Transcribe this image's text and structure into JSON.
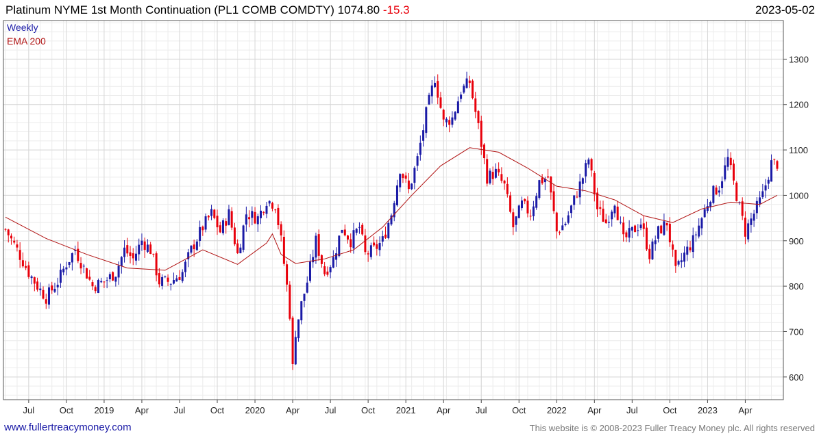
{
  "header": {
    "title": "Platinum NYME 1st Month Continuation (PL1 COMB COMDTY) 1074.80",
    "change": "-15.3",
    "date": "2023-05-02"
  },
  "legend": {
    "series1": "Weekly",
    "series2": "EMA 200"
  },
  "footer": {
    "website": "www.fullertreacymoney.com",
    "copyright": "This website is © 2008-2023 Fuller Treacy Money plc. All rights reserved"
  },
  "colors": {
    "up": "#1a1aa6",
    "down": "#e8000b",
    "ema": "#b01010",
    "grid": "#d6d6d6"
  },
  "chart_data": {
    "type": "candlestick",
    "x_ticks": [
      "Jul",
      "Oct",
      "2019",
      "Apr",
      "Jul",
      "Oct",
      "2020",
      "Apr",
      "Jul",
      "Oct",
      "2021",
      "Apr",
      "Jul",
      "Oct",
      "2022",
      "Apr",
      "Jul",
      "Oct",
      "2023",
      "Apr"
    ],
    "y_ticks": [
      600,
      700,
      800,
      900,
      1000,
      1100,
      1200,
      1300
    ],
    "ylim": [
      550,
      1385
    ],
    "weekly_close_points": [
      [
        0,
        925
      ],
      [
        4,
        880
      ],
      [
        8,
        830
      ],
      [
        11,
        800
      ],
      [
        14,
        775
      ],
      [
        18,
        810
      ],
      [
        21,
        850
      ],
      [
        24,
        880
      ],
      [
        27,
        840
      ],
      [
        30,
        800
      ],
      [
        34,
        810
      ],
      [
        38,
        830
      ],
      [
        41,
        880
      ],
      [
        44,
        860
      ],
      [
        47,
        900
      ],
      [
        50,
        880
      ],
      [
        53,
        810
      ],
      [
        57,
        810
      ],
      [
        61,
        830
      ],
      [
        64,
        880
      ],
      [
        68,
        930
      ],
      [
        71,
        960
      ],
      [
        74,
        920
      ],
      [
        77,
        960
      ],
      [
        80,
        870
      ],
      [
        83,
        960
      ],
      [
        87,
        950
      ],
      [
        90,
        990
      ],
      [
        93,
        980
      ],
      [
        95,
        900
      ],
      [
        97,
        800
      ],
      [
        98,
        740
      ],
      [
        99,
        620
      ],
      [
        100,
        700
      ],
      [
        102,
        760
      ],
      [
        104,
        810
      ],
      [
        107,
        900
      ],
      [
        110,
        830
      ],
      [
        113,
        860
      ],
      [
        116,
        930
      ],
      [
        119,
        900
      ],
      [
        122,
        930
      ],
      [
        124,
        870
      ],
      [
        127,
        880
      ],
      [
        130,
        900
      ],
      [
        133,
        960
      ],
      [
        136,
        1060
      ],
      [
        139,
        1010
      ],
      [
        142,
        1080
      ],
      [
        145,
        1180
      ],
      [
        148,
        1260
      ],
      [
        151,
        1160
      ],
      [
        154,
        1170
      ],
      [
        157,
        1230
      ],
      [
        160,
        1250
      ],
      [
        163,
        1150
      ],
      [
        166,
        1040
      ],
      [
        169,
        1050
      ],
      [
        172,
        1020
      ],
      [
        175,
        930
      ],
      [
        178,
        980
      ],
      [
        181,
        960
      ],
      [
        184,
        1030
      ],
      [
        187,
        1040
      ],
      [
        190,
        920
      ],
      [
        193,
        940
      ],
      [
        196,
        990
      ],
      [
        199,
        1040
      ],
      [
        201,
        1080
      ],
      [
        204,
        970
      ],
      [
        207,
        940
      ],
      [
        210,
        990
      ],
      [
        213,
        900
      ],
      [
        216,
        920
      ],
      [
        219,
        940
      ],
      [
        222,
        870
      ],
      [
        225,
        920
      ],
      [
        228,
        940
      ],
      [
        231,
        830
      ],
      [
        234,
        870
      ],
      [
        237,
        900
      ],
      [
        240,
        950
      ],
      [
        243,
        1000
      ],
      [
        246,
        1020
      ],
      [
        249,
        1080
      ],
      [
        252,
        1000
      ],
      [
        255,
        920
      ],
      [
        258,
        960
      ],
      [
        261,
        1000
      ],
      [
        264,
        1070
      ]
    ],
    "ema200_points": [
      [
        0,
        952
      ],
      [
        14,
        905
      ],
      [
        28,
        870
      ],
      [
        42,
        840
      ],
      [
        55,
        835
      ],
      [
        68,
        880
      ],
      [
        80,
        848
      ],
      [
        90,
        895
      ],
      [
        92,
        915
      ],
      [
        95,
        870
      ],
      [
        100,
        850
      ],
      [
        110,
        860
      ],
      [
        120,
        880
      ],
      [
        130,
        930
      ],
      [
        140,
        1000
      ],
      [
        150,
        1065
      ],
      [
        160,
        1105
      ],
      [
        170,
        1095
      ],
      [
        180,
        1060
      ],
      [
        190,
        1020
      ],
      [
        200,
        1010
      ],
      [
        210,
        990
      ],
      [
        220,
        955
      ],
      [
        230,
        940
      ],
      [
        240,
        970
      ],
      [
        250,
        985
      ],
      [
        260,
        980
      ],
      [
        266,
        1000
      ]
    ],
    "weeks_total": 266,
    "xtick_weeks": [
      8,
      21,
      34,
      47,
      60,
      73,
      86,
      99,
      112,
      125,
      138,
      151,
      164,
      177,
      190,
      203,
      216,
      229,
      242,
      255
    ]
  }
}
